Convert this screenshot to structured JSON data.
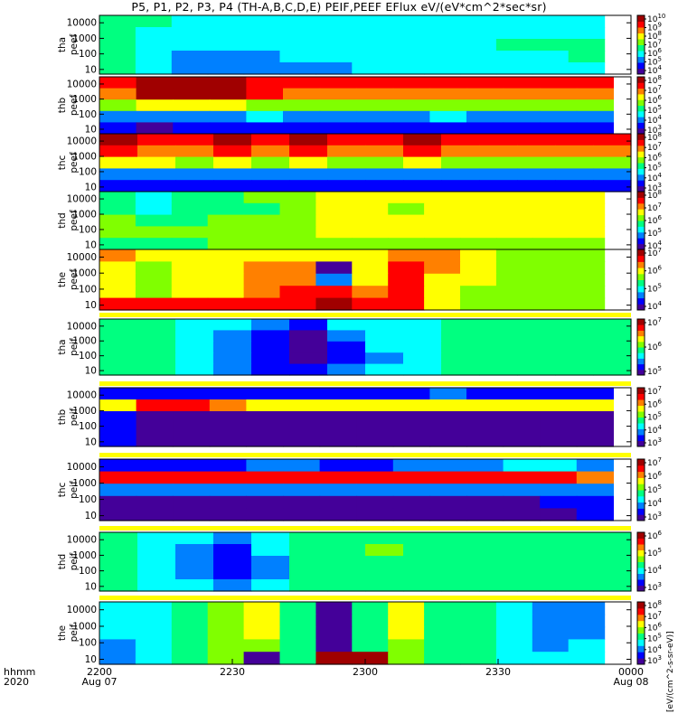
{
  "title": "P5, P1, P2, P3, P4 (TH-A,B,C,D,E) PEIF,PEEF EFlux eV/(eV*cm^2*sec*sr)",
  "colorbar_unit": "[eV/(cm^2-s-sr-eV)]",
  "colors": {
    "background": "#ffffff",
    "axis": "#000000",
    "saturation_band": "#ffff00"
  },
  "colormap": [
    "#440099",
    "#0000ff",
    "#0080ff",
    "#00ffff",
    "#00ff80",
    "#80ff00",
    "#ffff00",
    "#ff8000",
    "#ff0000",
    "#a00000"
  ],
  "chart_data": {
    "type": "heatmap",
    "x_axis": {
      "range_hhmm": [
        "2200",
        "0000"
      ],
      "ticks": [
        {
          "label": "2200",
          "sub": "Aug 07",
          "minutes": 0
        },
        {
          "label": "2230",
          "sub": "",
          "minutes": 30
        },
        {
          "label": "2300",
          "sub": "",
          "minutes": 60
        },
        {
          "label": "2330",
          "sub": "",
          "minutes": 90
        },
        {
          "label": "0000",
          "sub": "Aug 08",
          "minutes": 120
        }
      ],
      "row_label_1": "hhmm",
      "row_label_2": "2020"
    },
    "y_scale": "log",
    "y_range_eV": [
      5,
      30000
    ],
    "panels": [
      {
        "probe": "tha",
        "product": "peef",
        "yticks": [
          "10",
          "100",
          "1000",
          "10000"
        ],
        "cbar_ticks": [
          "10^4",
          "10^5",
          "10^6",
          "10^7",
          "10^8",
          "10^9",
          "10^10"
        ],
        "data_end_min": 114,
        "cols": 14,
        "grid": [
          [
            4,
            4,
            3,
            3,
            3,
            3,
            3,
            3,
            3,
            3,
            3,
            3,
            3,
            3
          ],
          [
            4,
            3,
            3,
            3,
            3,
            3,
            3,
            3,
            3,
            3,
            3,
            3,
            3,
            3
          ],
          [
            4,
            3,
            3,
            3,
            3,
            3,
            3,
            3,
            3,
            3,
            3,
            4,
            4,
            4
          ],
          [
            4,
            3,
            2,
            2,
            2,
            3,
            3,
            3,
            3,
            3,
            3,
            3,
            3,
            4
          ],
          [
            4,
            3,
            2,
            2,
            2,
            2,
            2,
            3,
            3,
            3,
            3,
            3,
            3,
            3
          ]
        ]
      },
      {
        "probe": "thb",
        "product": "peef",
        "yticks": [
          "10",
          "100",
          "1000",
          "10000"
        ],
        "cbar_ticks": [
          "10^3",
          "10^4",
          "10^5",
          "10^6",
          "10^7",
          "10^8"
        ],
        "data_end_min": 116,
        "cols": 14,
        "grid": [
          [
            8,
            9,
            9,
            9,
            8,
            8,
            8,
            8,
            8,
            8,
            8,
            8,
            8,
            8
          ],
          [
            7,
            9,
            9,
            9,
            8,
            7,
            7,
            7,
            7,
            7,
            7,
            7,
            7,
            7
          ],
          [
            5,
            6,
            6,
            6,
            5,
            5,
            5,
            5,
            5,
            5,
            5,
            5,
            5,
            5
          ],
          [
            2,
            2,
            2,
            2,
            3,
            2,
            2,
            2,
            2,
            3,
            2,
            2,
            2,
            2
          ],
          [
            1,
            0,
            1,
            1,
            1,
            1,
            1,
            1,
            1,
            1,
            1,
            1,
            1,
            1
          ]
        ]
      },
      {
        "probe": "thc",
        "product": "peef",
        "yticks": [
          "10",
          "100",
          "1000",
          "10000"
        ],
        "cbar_ticks": [
          "10^3",
          "10^4",
          "10^5",
          "10^6",
          "10^7",
          "10^8"
        ],
        "data_end_min": 120,
        "cols": 14,
        "grid": [
          [
            9,
            8,
            8,
            9,
            8,
            9,
            8,
            8,
            9,
            8,
            8,
            8,
            8,
            8
          ],
          [
            8,
            7,
            7,
            8,
            7,
            8,
            7,
            7,
            8,
            7,
            7,
            7,
            7,
            7
          ],
          [
            6,
            6,
            5,
            6,
            5,
            6,
            5,
            5,
            6,
            5,
            5,
            5,
            5,
            5
          ],
          [
            2,
            2,
            2,
            2,
            2,
            2,
            2,
            2,
            2,
            2,
            2,
            2,
            2,
            2
          ],
          [
            1,
            1,
            1,
            1,
            1,
            1,
            1,
            1,
            1,
            1,
            1,
            1,
            1,
            1
          ]
        ]
      },
      {
        "probe": "thd",
        "product": "peef",
        "yticks": [
          "10",
          "100",
          "1000",
          "10000"
        ],
        "cbar_ticks": [
          "10^4",
          "10^5",
          "10^6",
          "10^7",
          "10^8"
        ],
        "data_end_min": 114,
        "cols": 14,
        "grid": [
          [
            4,
            3,
            4,
            4,
            5,
            5,
            6,
            6,
            6,
            6,
            6,
            6,
            6,
            6
          ],
          [
            4,
            3,
            4,
            4,
            4,
            5,
            6,
            6,
            5,
            6,
            6,
            6,
            6,
            6
          ],
          [
            5,
            4,
            4,
            5,
            5,
            5,
            6,
            6,
            6,
            6,
            6,
            6,
            6,
            6
          ],
          [
            5,
            5,
            5,
            5,
            5,
            5,
            6,
            6,
            6,
            6,
            6,
            6,
            6,
            6
          ],
          [
            4,
            4,
            4,
            5,
            5,
            5,
            5,
            5,
            5,
            5,
            5,
            5,
            5,
            5
          ]
        ]
      },
      {
        "probe": "the",
        "product": "peef",
        "yticks": [
          "10",
          "100",
          "1000",
          "10000"
        ],
        "cbar_ticks": [
          "10^4",
          "10^5",
          "10^6",
          "10^7"
        ],
        "data_end_min": 114,
        "cols": 14,
        "grid": [
          [
            7,
            6,
            6,
            6,
            6,
            6,
            6,
            6,
            7,
            7,
            6,
            5,
            5,
            5
          ],
          [
            6,
            5,
            6,
            6,
            7,
            7,
            0,
            6,
            8,
            7,
            6,
            5,
            5,
            5
          ],
          [
            6,
            5,
            6,
            6,
            7,
            7,
            2,
            6,
            8,
            6,
            6,
            5,
            5,
            5
          ],
          [
            6,
            5,
            6,
            6,
            7,
            8,
            8,
            7,
            8,
            6,
            5,
            5,
            5,
            5
          ],
          [
            8,
            8,
            8,
            8,
            8,
            8,
            9,
            8,
            8,
            6,
            5,
            5,
            5,
            5
          ]
        ]
      },
      {
        "probe": "tha",
        "product": "peif",
        "yticks": [
          "10",
          "100",
          "1000",
          "10000"
        ],
        "cbar_ticks": [
          "10^5",
          "10^6",
          "10^7"
        ],
        "data_end_min": 120,
        "cols": 14,
        "grid": [
          [
            4,
            4,
            3,
            3,
            2,
            1,
            3,
            3,
            3,
            4,
            4,
            4,
            4,
            4
          ],
          [
            4,
            4,
            3,
            2,
            1,
            0,
            2,
            3,
            3,
            4,
            4,
            4,
            4,
            4
          ],
          [
            4,
            4,
            3,
            2,
            1,
            0,
            1,
            3,
            3,
            4,
            4,
            4,
            4,
            4
          ],
          [
            4,
            4,
            3,
            2,
            1,
            0,
            1,
            2,
            3,
            4,
            4,
            4,
            4,
            4
          ],
          [
            4,
            4,
            3,
            2,
            1,
            1,
            2,
            3,
            3,
            4,
            4,
            4,
            4,
            4
          ]
        ]
      },
      {
        "probe": "thb",
        "product": "peif",
        "yticks": [
          "10",
          "100",
          "1000",
          "10000"
        ],
        "cbar_ticks": [
          "10^3",
          "10^4",
          "10^5",
          "10^6",
          "10^7"
        ],
        "data_end_min": 116,
        "cols": 14,
        "grid": [
          [
            1,
            1,
            1,
            1,
            1,
            1,
            1,
            1,
            1,
            2,
            1,
            1,
            1,
            1
          ],
          [
            6,
            8,
            8,
            7,
            6,
            6,
            6,
            6,
            6,
            6,
            6,
            6,
            6,
            6
          ],
          [
            1,
            0,
            0,
            0,
            0,
            0,
            0,
            0,
            0,
            0,
            0,
            0,
            0,
            0
          ],
          [
            1,
            0,
            0,
            0,
            0,
            0,
            0,
            0,
            0,
            0,
            0,
            0,
            0,
            0
          ],
          [
            1,
            0,
            0,
            0,
            0,
            0,
            0,
            0,
            0,
            0,
            0,
            0,
            0,
            0
          ]
        ]
      },
      {
        "probe": "thc",
        "product": "peif",
        "yticks": [
          "10",
          "100",
          "1000",
          "10000"
        ],
        "cbar_ticks": [
          "10^3",
          "10^4",
          "10^5",
          "10^6",
          "10^7"
        ],
        "data_end_min": 116,
        "cols": 14,
        "grid": [
          [
            1,
            1,
            1,
            1,
            2,
            2,
            1,
            1,
            2,
            2,
            2,
            3,
            3,
            2
          ],
          [
            8,
            8,
            8,
            8,
            8,
            8,
            8,
            8,
            8,
            8,
            8,
            8,
            8,
            7
          ],
          [
            2,
            2,
            2,
            2,
            2,
            2,
            2,
            2,
            2,
            2,
            2,
            2,
            2,
            2
          ],
          [
            0,
            0,
            0,
            0,
            0,
            0,
            0,
            0,
            0,
            0,
            0,
            0,
            1,
            1
          ],
          [
            0,
            0,
            0,
            0,
            0,
            0,
            0,
            0,
            0,
            0,
            0,
            0,
            0,
            1
          ]
        ]
      },
      {
        "probe": "thd",
        "product": "peif",
        "yticks": [
          "10",
          "100",
          "1000",
          "10000"
        ],
        "cbar_ticks": [
          "10^3",
          "10^4",
          "10^5",
          "10^6"
        ],
        "data_end_min": 120,
        "cols": 14,
        "grid": [
          [
            4,
            3,
            3,
            2,
            3,
            4,
            4,
            4,
            4,
            4,
            4,
            4,
            4,
            4
          ],
          [
            4,
            3,
            2,
            1,
            3,
            4,
            4,
            5,
            4,
            4,
            4,
            4,
            4,
            4
          ],
          [
            4,
            3,
            2,
            1,
            2,
            4,
            4,
            4,
            4,
            4,
            4,
            4,
            4,
            4
          ],
          [
            4,
            3,
            2,
            1,
            2,
            4,
            4,
            4,
            4,
            4,
            4,
            4,
            4,
            4
          ],
          [
            4,
            3,
            3,
            2,
            3,
            4,
            4,
            4,
            4,
            4,
            4,
            4,
            4,
            4
          ]
        ]
      },
      {
        "probe": "the",
        "product": "peif",
        "yticks": [
          "10",
          "100",
          "1000",
          "10000"
        ],
        "cbar_ticks": [
          "10^3",
          "10^4",
          "10^5",
          "10^6",
          "10^7",
          "10^8"
        ],
        "data_end_min": 114,
        "cols": 14,
        "grid": [
          [
            3,
            3,
            4,
            5,
            6,
            4,
            0,
            4,
            6,
            4,
            4,
            3,
            2,
            2
          ],
          [
            3,
            3,
            4,
            5,
            6,
            4,
            0,
            4,
            6,
            4,
            4,
            3,
            2,
            2
          ],
          [
            3,
            3,
            4,
            5,
            6,
            4,
            0,
            4,
            6,
            4,
            4,
            3,
            2,
            2
          ],
          [
            2,
            3,
            4,
            5,
            5,
            4,
            0,
            4,
            5,
            4,
            4,
            3,
            2,
            3
          ],
          [
            2,
            3,
            4,
            5,
            0,
            4,
            9,
            9,
            5,
            4,
            4,
            3,
            3,
            3
          ]
        ]
      }
    ]
  }
}
